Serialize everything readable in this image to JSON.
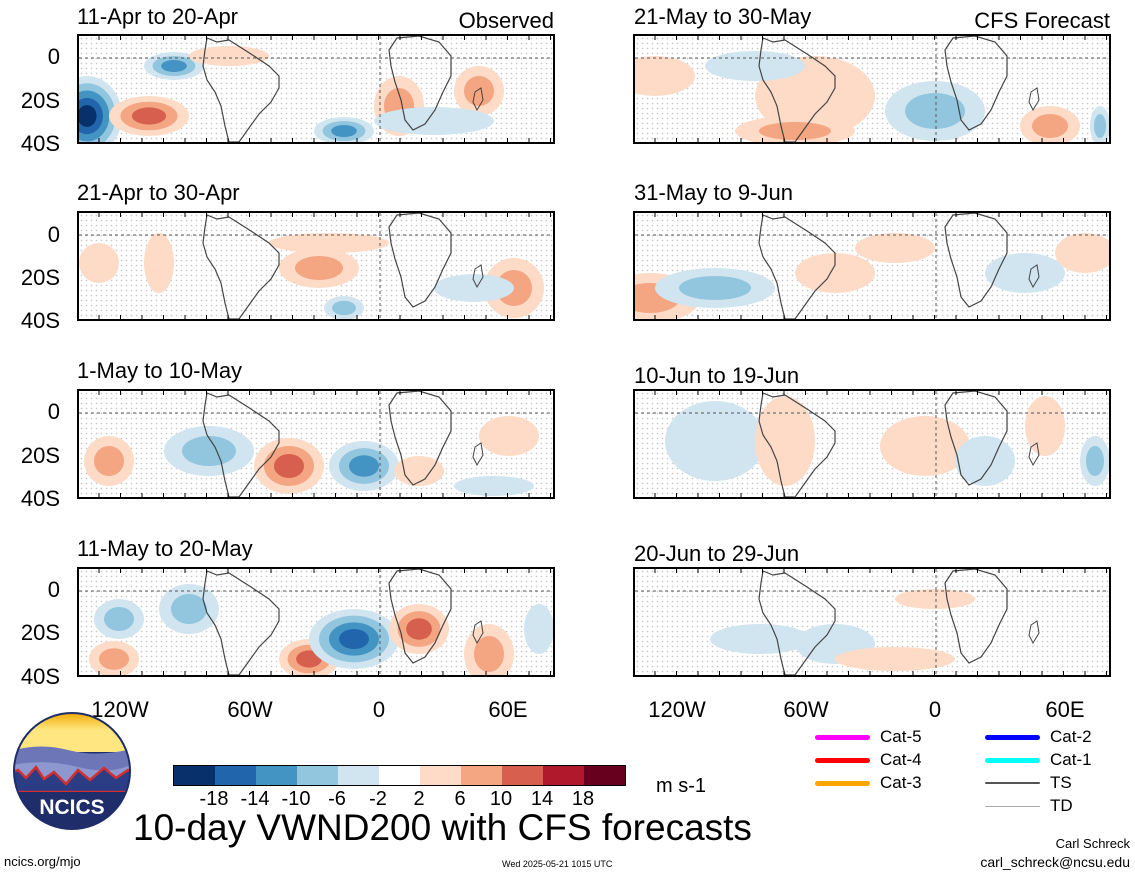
{
  "panels": [
    {
      "title": "11-Apr to 20-Apr",
      "tag": "Observed"
    },
    {
      "title": "21-Apr to 30-Apr",
      "tag": ""
    },
    {
      "title": "1-May to 10-May",
      "tag": ""
    },
    {
      "title": "11-May to 20-May",
      "tag": ""
    },
    {
      "title": "21-May to 30-May",
      "tag": "CFS Forecast"
    },
    {
      "title": "31-May to 9-Jun",
      "tag": ""
    },
    {
      "title": "10-Jun to 19-Jun",
      "tag": ""
    },
    {
      "title": "20-Jun to 29-Jun",
      "tag": ""
    }
  ],
  "y_ticks": [
    "0",
    "20S",
    "40S"
  ],
  "x_ticks": [
    "120W",
    "60W",
    "0",
    "60E"
  ],
  "colorbar": {
    "colors": [
      "#08306b",
      "#2166ac",
      "#4393c3",
      "#92c5de",
      "#d1e5f0",
      "#ffffff",
      "#fddbc7",
      "#f4a582",
      "#d6604d",
      "#b2182b",
      "#67001f"
    ],
    "labels": [
      "-18",
      "-14",
      "-10",
      "-6",
      "-2",
      "2",
      "6",
      "10",
      "14",
      "18"
    ],
    "units": "m s-1"
  },
  "legend": [
    {
      "label": "Cat-5",
      "color": "#ff00ff"
    },
    {
      "label": "Cat-4",
      "color": "#ff0000"
    },
    {
      "label": "Cat-3",
      "color": "#ffa500"
    },
    {
      "label": "Cat-2",
      "color": "#0000ff"
    },
    {
      "label": "Cat-1",
      "color": "#00ffff"
    },
    {
      "label": "TS",
      "color": "#555555"
    },
    {
      "label": "TD",
      "color": "#aaaaaa"
    }
  ],
  "logo": {
    "text": "NCICS"
  },
  "main_title": "10-day VWND200 with CFS forecasts",
  "footer": {
    "left": "ncics.org/mjo",
    "center": "Wed 2025-05-21 1015 UTC",
    "author": "Carl Schreck",
    "email": "carl_schreck@ncsu.edu"
  }
}
